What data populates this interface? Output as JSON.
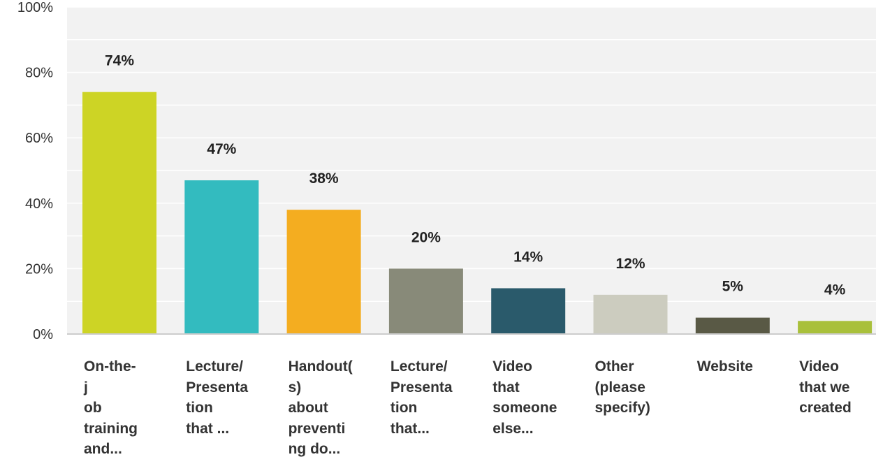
{
  "chart_data": {
    "type": "bar",
    "title": "",
    "xlabel": "",
    "ylabel": "",
    "ylim": [
      0,
      100
    ],
    "yticks": [
      0,
      20,
      40,
      60,
      80,
      100
    ],
    "ytick_labels": [
      "0%",
      "20%",
      "40%",
      "60%",
      "80%",
      "100%"
    ],
    "grid": true,
    "legend": "none",
    "categories": [
      "On-the-j ob training and...",
      "Lecture/ Presentation that ...",
      "Handout(s) about preventing do...",
      "Lecture/ Presentation that...",
      "Video that someone else...",
      "Other (please specify)",
      "Website",
      "Video that we created"
    ],
    "category_label_lines": [
      "On-the-\nj\nob\ntraining\nand...",
      "Lecture/\nPresenta\ntion\nthat ...",
      "Handout(\ns)\nabout\npreventi\nng do...",
      "Lecture/\nPresenta\ntion\nthat...",
      "Video\nthat\nsomeone\nelse...",
      "Other\n(please\nspecify)",
      "Website",
      "Video\nthat we\ncreated"
    ],
    "values": [
      74,
      47,
      38,
      20,
      14,
      12,
      5,
      4
    ],
    "data_labels": [
      "74%",
      "47%",
      "38%",
      "20%",
      "14%",
      "12%",
      "5%",
      "4%"
    ],
    "colors": [
      "#cdd425",
      "#33bbbf",
      "#f4ad20",
      "#888a79",
      "#2a5a6b",
      "#ccccbf",
      "#595945",
      "#a9c03b"
    ],
    "axis_color": "#cccccc",
    "grid_color": "#e6e6e6",
    "plot_background": "#f2f2f2"
  }
}
